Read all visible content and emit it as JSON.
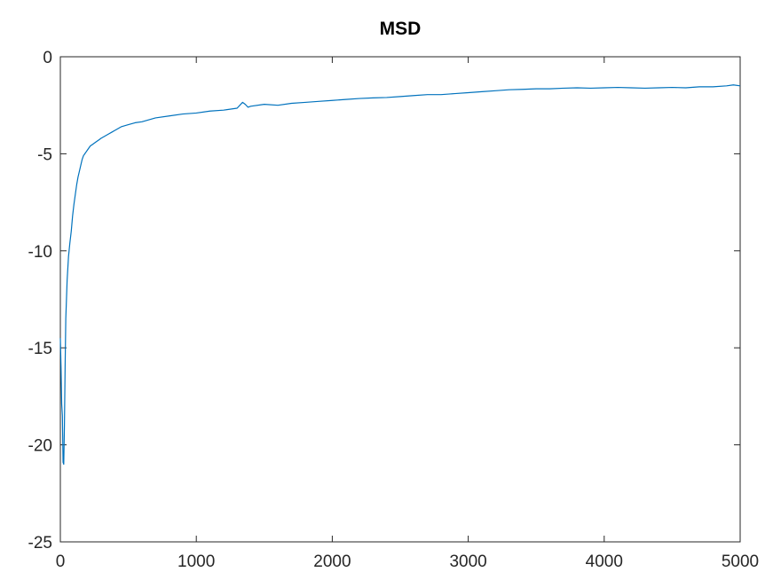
{
  "chart_data": {
    "type": "line",
    "title": "MSD",
    "xlabel": "",
    "ylabel": "",
    "xlim": [
      0,
      5000
    ],
    "ylim": [
      -25,
      0
    ],
    "xticks": [
      0,
      1000,
      2000,
      3000,
      4000,
      5000
    ],
    "yticks": [
      0,
      -5,
      -10,
      -15,
      -20,
      -25
    ],
    "xtick_labels": [
      "0",
      "1000",
      "2000",
      "3000",
      "4000",
      "5000"
    ],
    "ytick_labels": [
      "0",
      "-5",
      "-10",
      "-15",
      "-20",
      "-25"
    ],
    "grid": false,
    "series": [
      {
        "color": "#0072BD",
        "x": [
          0,
          5,
          10,
          15,
          20,
          25,
          30,
          35,
          40,
          45,
          50,
          60,
          70,
          80,
          90,
          100,
          110,
          120,
          130,
          140,
          150,
          160,
          170,
          180,
          190,
          200,
          220,
          240,
          260,
          280,
          300,
          350,
          400,
          450,
          500,
          550,
          600,
          700,
          800,
          900,
          1000,
          1100,
          1200,
          1300,
          1340,
          1360,
          1380,
          1400,
          1500,
          1600,
          1700,
          1800,
          1900,
          2000,
          2100,
          2200,
          2300,
          2400,
          2500,
          2600,
          2700,
          2800,
          2900,
          3000,
          3100,
          3200,
          3300,
          3400,
          3500,
          3600,
          3700,
          3800,
          3900,
          4000,
          4100,
          4200,
          4300,
          4400,
          4500,
          4600,
          4700,
          4800,
          4900,
          4950,
          5000
        ],
        "y": [
          -14.5,
          -16.0,
          -17.9,
          -18.5,
          -20.9,
          -21.0,
          -19.0,
          -16.0,
          -13.5,
          -12.5,
          -11.5,
          -10.3,
          -9.6,
          -9.0,
          -8.2,
          -7.6,
          -7.1,
          -6.6,
          -6.2,
          -5.9,
          -5.6,
          -5.3,
          -5.1,
          -5.0,
          -4.9,
          -4.8,
          -4.6,
          -4.5,
          -4.4,
          -4.3,
          -4.2,
          -4.0,
          -3.8,
          -3.6,
          -3.5,
          -3.4,
          -3.35,
          -3.15,
          -3.05,
          -2.95,
          -2.9,
          -2.8,
          -2.75,
          -2.65,
          -2.35,
          -2.45,
          -2.6,
          -2.55,
          -2.45,
          -2.5,
          -2.4,
          -2.35,
          -2.3,
          -2.25,
          -2.2,
          -2.15,
          -2.12,
          -2.1,
          -2.05,
          -2.0,
          -1.95,
          -1.95,
          -1.9,
          -1.85,
          -1.8,
          -1.75,
          -1.7,
          -1.68,
          -1.65,
          -1.65,
          -1.62,
          -1.6,
          -1.62,
          -1.6,
          -1.58,
          -1.6,
          -1.62,
          -1.6,
          -1.58,
          -1.6,
          -1.55,
          -1.55,
          -1.5,
          -1.45,
          -1.5
        ]
      }
    ]
  }
}
